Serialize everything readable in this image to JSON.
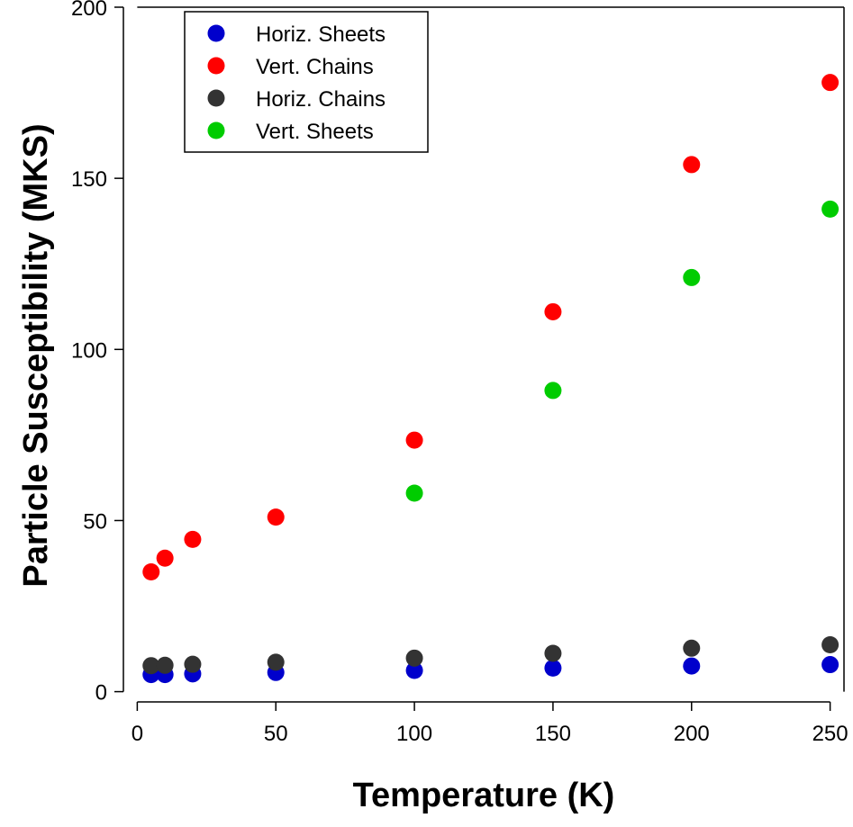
{
  "chart_data": {
    "type": "scatter",
    "title": "",
    "xlabel": "Temperature (K)",
    "ylabel": "Particle Susceptibility (MKS)",
    "xlim": [
      -5,
      255
    ],
    "ylim": [
      -3,
      200
    ],
    "x_ticks": [
      0,
      50,
      100,
      150,
      200,
      250
    ],
    "y_ticks": [
      0,
      50,
      100,
      150,
      200
    ],
    "grid": false,
    "legend_position": "top-left",
    "series": [
      {
        "name": "Horiz. Sheets",
        "color": "#0000cc",
        "points": [
          [
            5,
            5.0
          ],
          [
            10,
            5.0
          ],
          [
            20,
            5.2
          ],
          [
            50,
            5.6
          ],
          [
            100,
            6.2
          ],
          [
            150,
            6.9
          ],
          [
            200,
            7.5
          ],
          [
            250,
            7.9
          ]
        ]
      },
      {
        "name": "Vert. Chains",
        "color": "#ff0000",
        "points": [
          [
            5,
            35.0
          ],
          [
            10,
            39.0
          ],
          [
            20,
            44.5
          ],
          [
            50,
            51.0
          ],
          [
            100,
            73.5
          ],
          [
            150,
            111.0
          ],
          [
            200,
            154.0
          ],
          [
            250,
            178.0
          ]
        ]
      },
      {
        "name": "Horiz. Chains",
        "color": "#333333",
        "points": [
          [
            5,
            7.6
          ],
          [
            10,
            7.7
          ],
          [
            20,
            8.0
          ],
          [
            50,
            8.6
          ],
          [
            100,
            9.8
          ],
          [
            150,
            11.2
          ],
          [
            200,
            12.7
          ],
          [
            250,
            13.7
          ]
        ]
      },
      {
        "name": "Vert. Sheets",
        "color": "#00cc00",
        "points": [
          [
            100,
            58.0
          ],
          [
            150,
            88.0
          ],
          [
            200,
            121.0
          ],
          [
            250,
            141.0
          ]
        ]
      }
    ]
  }
}
